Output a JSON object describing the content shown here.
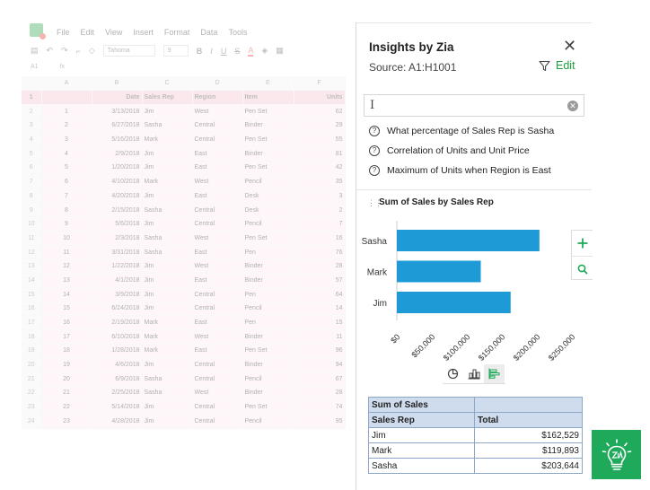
{
  "sheet": {
    "menu": [
      "File",
      "Edit",
      "View",
      "Insert",
      "Format",
      "Data",
      "Tools"
    ],
    "font_name": "Tahoma",
    "font_size": "9",
    "cell_ref": "A1",
    "fx": "fx",
    "columns": [
      "A",
      "B",
      "C",
      "D",
      "E",
      "F"
    ],
    "header_row": [
      "",
      "Date",
      "Sales Rep",
      "Region",
      "Item",
      "Units"
    ],
    "rows": [
      [
        "1",
        "3/13/2018",
        "Jim",
        "West",
        "Pen Set",
        "62"
      ],
      [
        "2",
        "6/27/2018",
        "Sasha",
        "Central",
        "Binder",
        "29"
      ],
      [
        "3",
        "5/16/2018",
        "Mark",
        "Central",
        "Pen Set",
        "55"
      ],
      [
        "4",
        "2/9/2018",
        "Jim",
        "East",
        "Binder",
        "81"
      ],
      [
        "5",
        "1/20/2018",
        "Jim",
        "East",
        "Pen Set",
        "42"
      ],
      [
        "6",
        "4/10/2018",
        "Mark",
        "West",
        "Pencil",
        "35"
      ],
      [
        "7",
        "4/20/2018",
        "Jim",
        "East",
        "Desk",
        "3"
      ],
      [
        "8",
        "2/15/2018",
        "Sasha",
        "Central",
        "Desk",
        "2"
      ],
      [
        "9",
        "5/6/2018",
        "Jim",
        "Central",
        "Pencil",
        "7"
      ],
      [
        "10",
        "2/3/2018",
        "Sasha",
        "West",
        "Pen Set",
        "16"
      ],
      [
        "11",
        "3/31/2018",
        "Sasha",
        "East",
        "Pen",
        "76"
      ],
      [
        "12",
        "1/22/2018",
        "Jim",
        "West",
        "Binder",
        "28"
      ],
      [
        "13",
        "4/1/2018",
        "Jim",
        "East",
        "Binder",
        "57"
      ],
      [
        "14",
        "3/9/2018",
        "Jim",
        "Central",
        "Pen",
        "64"
      ],
      [
        "15",
        "6/24/2018",
        "Jim",
        "Central",
        "Pencil",
        "14"
      ],
      [
        "16",
        "2/19/2018",
        "Mark",
        "East",
        "Pen",
        "15"
      ],
      [
        "17",
        "6/10/2018",
        "Mark",
        "West",
        "Binder",
        "11"
      ],
      [
        "18",
        "1/28/2018",
        "Mark",
        "East",
        "Pen Set",
        "96"
      ],
      [
        "19",
        "4/6/2018",
        "Jim",
        "Central",
        "Binder",
        "94"
      ],
      [
        "20",
        "6/9/2018",
        "Sasha",
        "Central",
        "Pencil",
        "67"
      ],
      [
        "21",
        "2/25/2018",
        "Sasha",
        "West",
        "Binder",
        "28"
      ],
      [
        "22",
        "5/14/2018",
        "Jim",
        "Central",
        "Pen Set",
        "74"
      ],
      [
        "23",
        "4/28/2018",
        "Jim",
        "Central",
        "Pencil",
        "95"
      ]
    ]
  },
  "panel": {
    "title": "Insights by Zia",
    "source": "Source: A1:H1001",
    "edit_label": "Edit",
    "query_value": "",
    "suggestions": [
      "What percentage of Sales Rep is Sasha",
      "Correlation of Units and Unit Price",
      "Maximum of Units when Region is East"
    ],
    "card_title": "Sum of Sales by Sales Rep",
    "accent": "#1b9e3e",
    "bar_color": "#1e9bd7"
  },
  "chart_data": {
    "type": "bar",
    "orientation": "horizontal",
    "categories": [
      "Sasha",
      "Mark",
      "Jim"
    ],
    "values": [
      203644,
      119893,
      162529
    ],
    "xlim": [
      0,
      250000
    ],
    "xticks": [
      "$0",
      "$50,000",
      "$100,000",
      "$150,000",
      "$200,000",
      "$250,000"
    ],
    "grid": false
  },
  "pivot": {
    "header1": "Sum of Sales",
    "col1": "Sales Rep",
    "col2": "Total",
    "rows": [
      {
        "rep": "Jim",
        "total": "$162,529"
      },
      {
        "rep": "Mark",
        "total": "$119,893"
      },
      {
        "rep": "Sasha",
        "total": "$203,644"
      }
    ]
  }
}
